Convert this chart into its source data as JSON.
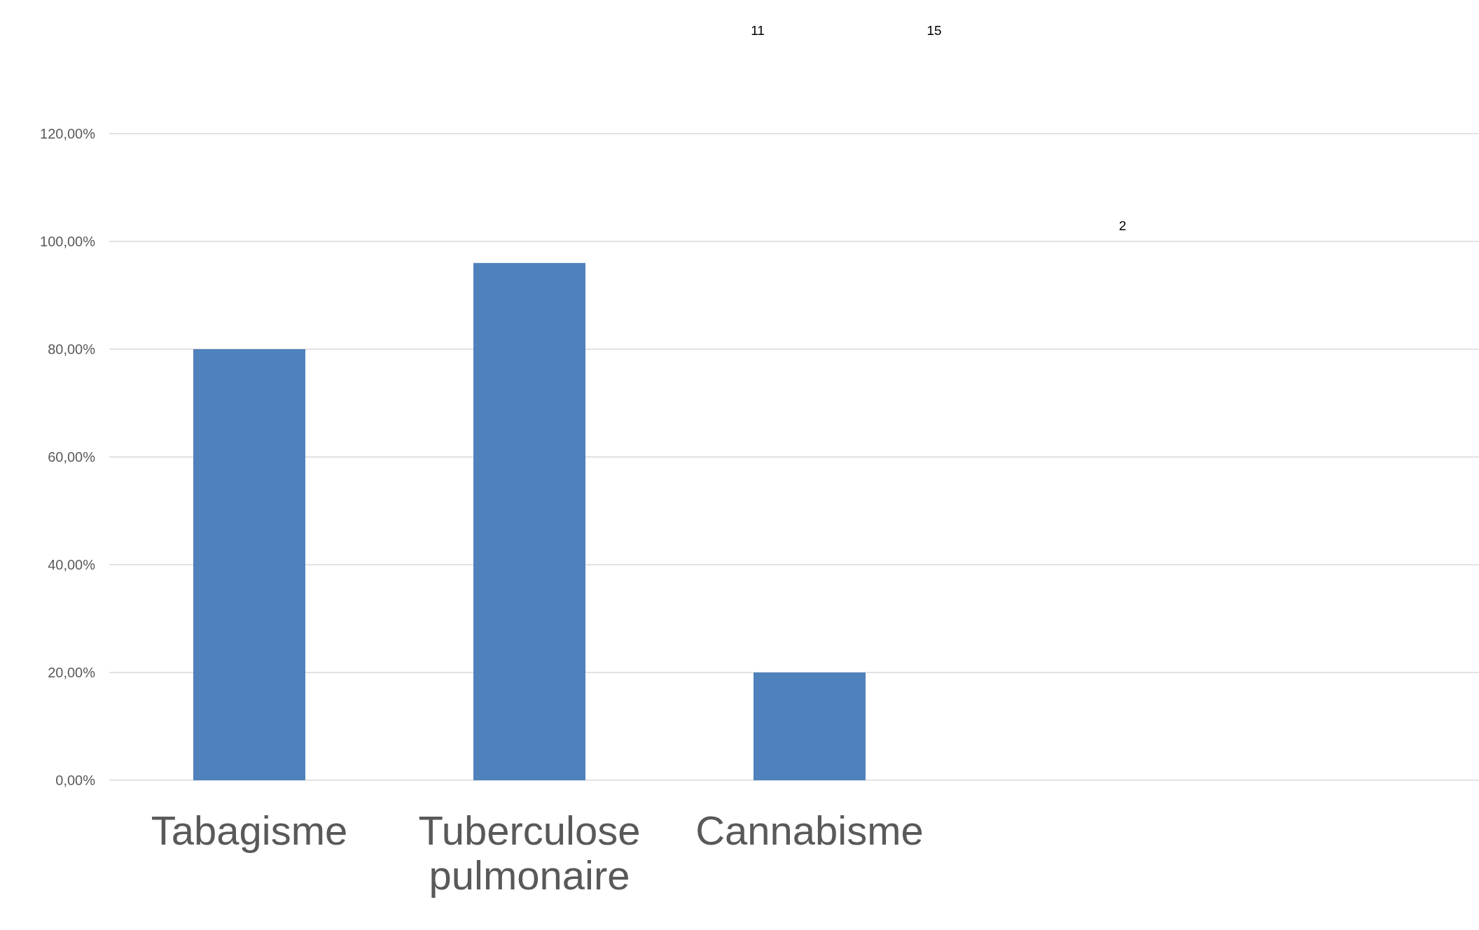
{
  "chart_data": {
    "type": "bar",
    "categories": [
      "Tabagisme",
      "Tuberculose pulmonaire",
      "Cannabisme",
      null,
      null
    ],
    "values": [
      80,
      96,
      20,
      null,
      null
    ],
    "color": "#4f81bd",
    "ylim": [
      0,
      120
    ],
    "yticks": [
      {
        "value": 0,
        "label": "0,00%"
      },
      {
        "value": 20,
        "label": "20,00%"
      },
      {
        "value": 40,
        "label": "40,00%"
      },
      {
        "value": 60,
        "label": "60,00%"
      },
      {
        "value": 80,
        "label": "80,00%"
      },
      {
        "value": 100,
        "label": "100,00%"
      },
      {
        "value": 120,
        "label": "120,00%"
      }
    ],
    "grid": "y",
    "annotations": [
      "11",
      "15",
      "2"
    ]
  }
}
